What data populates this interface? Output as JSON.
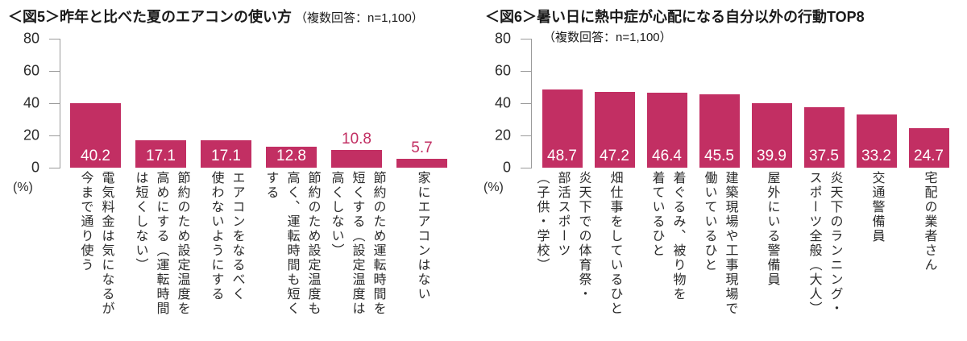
{
  "colors": {
    "bar": "#c22f63",
    "axis": "#9b9b9b",
    "value_inside": "#ffffff",
    "text": "#2b2b2b"
  },
  "chart_data": [
    {
      "type": "bar",
      "title": "＜図5＞昨年と比べた夏のエアコンの使い方",
      "subtitle": "（複数回答：n=1,100）",
      "unit_label": "(%)",
      "ylim": [
        0,
        80
      ],
      "yticks": [
        0,
        20,
        40,
        60,
        80
      ],
      "grid": false,
      "legend": false,
      "bar_color": "#c22f63",
      "categories": [
        "電気料金は気になるが\n今まで通り使う",
        "節約のため設定温度を\n高めにする（運転時間\nは短くしない）",
        "エアコンをなるべく\n使わないようにする",
        "節約のため設定温度も\n高く、運転時間も短く\nする",
        "節約のため運転時間を\n短くする（設定温度は\n高くしない）",
        "家にエアコンはない"
      ],
      "values": [
        40.2,
        17.1,
        17.1,
        12.8,
        10.8,
        5.7
      ]
    },
    {
      "type": "bar",
      "title": "＜図6＞暑い日に熱中症が心配になる自分以外の行動TOP8",
      "subtitle": "（複数回答：n=1,100）",
      "unit_label": "(%)",
      "ylim": [
        0,
        80
      ],
      "yticks": [
        0,
        20,
        40,
        60,
        80
      ],
      "grid": false,
      "legend": false,
      "bar_color": "#c22f63",
      "categories": [
        "炎天下での体育祭・\n部活スポーツ\n（子供・学校）",
        "畑仕事をしているひと",
        "着ぐるみ、被り物を\n着ているひと",
        "建築現場や工事現場で\n働いているひと",
        "屋外にいる警備員",
        "炎天下のランニング・\nスポーツ全般（大人）",
        "交通警備員",
        "宅配の業者さん"
      ],
      "values": [
        48.7,
        47.2,
        46.4,
        45.5,
        39.9,
        37.5,
        33.2,
        24.7
      ]
    }
  ]
}
